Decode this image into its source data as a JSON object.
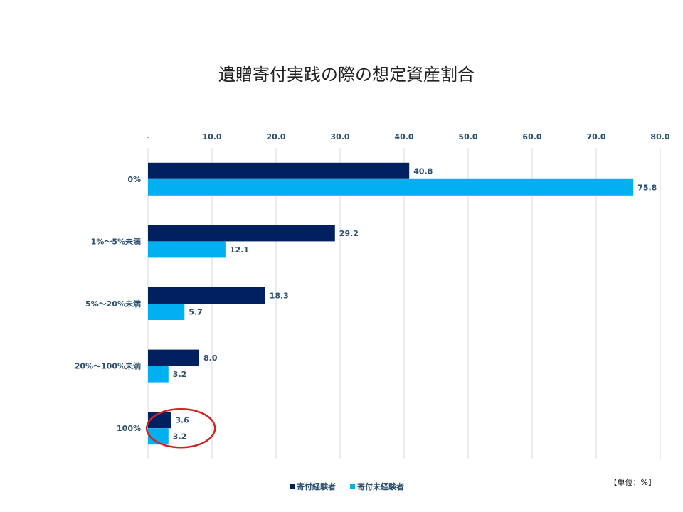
{
  "chart_data": {
    "type": "bar",
    "orientation": "horizontal",
    "title": "遺贈寄付実践の際の想定資産割合",
    "categories": [
      "0%",
      "1%～5%未満",
      "5%～20%未満",
      "20%～100%未満",
      "100%"
    ],
    "series": [
      {
        "name": "寄付経験者",
        "values": [
          40.8,
          29.2,
          18.3,
          8.0,
          3.6
        ],
        "labels": [
          "40.8",
          "29.2",
          "18.3",
          "8.0",
          "3.6"
        ],
        "color": "#002060"
      },
      {
        "name": "寄付未経験者",
        "values": [
          75.8,
          12.1,
          5.7,
          3.2,
          3.2
        ],
        "labels": [
          "75.8",
          "12.1",
          "5.7",
          "3.2",
          "3.2"
        ],
        "color": "#00b0f0"
      }
    ],
    "xlim": [
      0,
      80
    ],
    "x_ticks": [
      "-",
      "10.0",
      "20.0",
      "30.0",
      "40.0",
      "50.0",
      "60.0",
      "70.0",
      "80.0"
    ],
    "x_axis_position": "top",
    "grid": true,
    "legend": "bottom",
    "unit_note": "【単位：%】",
    "highlight": {
      "category": "100%",
      "shape": "ellipse",
      "color": "#d42020"
    }
  }
}
